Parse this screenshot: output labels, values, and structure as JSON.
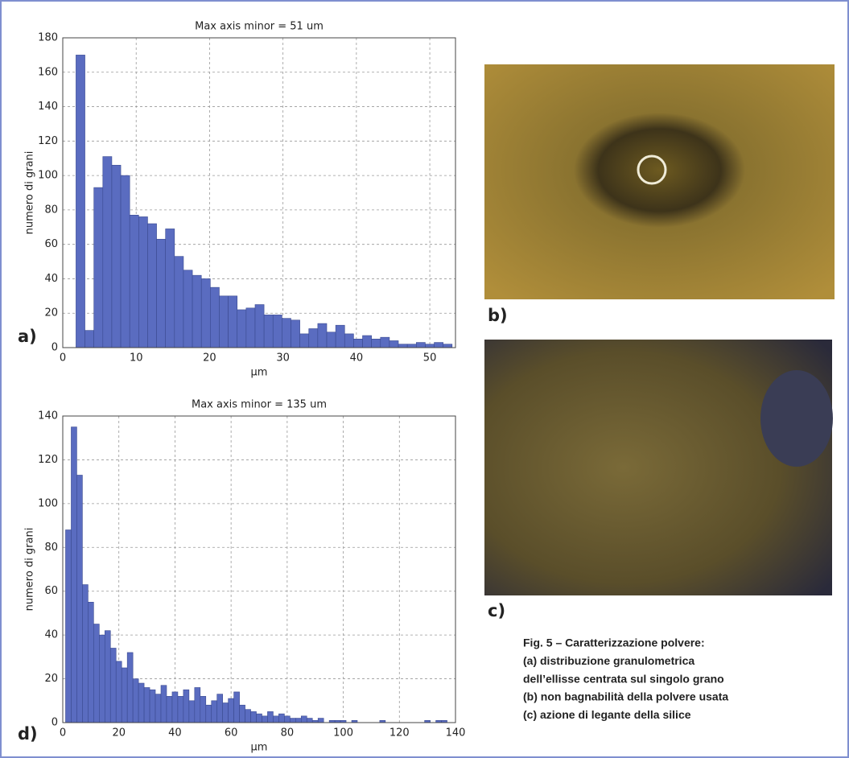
{
  "chart_data": [
    {
      "type": "histogram",
      "title": "Max axis minor = 51 um",
      "xlabel": "μm",
      "ylabel": "numero di grani",
      "color": "#5a6cc0",
      "grid": true,
      "bins": [
        1.8,
        3.02,
        4.24,
        5.46,
        6.68,
        7.9,
        9.12,
        10.34,
        11.56,
        12.78,
        14,
        15.22,
        16.44,
        17.66,
        18.88,
        20.1,
        21.32,
        22.54,
        23.76,
        24.98,
        26.2,
        27.42,
        28.64,
        29.86,
        31.08,
        32.3,
        33.52,
        34.74,
        35.96,
        37.18,
        38.4,
        39.62,
        40.84,
        42.06,
        43.28,
        44.5,
        45.72,
        46.94,
        48.16,
        49.38,
        50.6,
        51.82,
        53.04
      ],
      "counts": [
        170,
        10,
        93,
        111,
        106,
        100,
        77,
        76,
        72,
        63,
        69,
        53,
        45,
        42,
        40,
        35,
        30,
        30,
        22,
        23,
        25,
        19,
        19,
        17,
        16,
        8,
        11,
        14,
        9,
        13,
        8,
        5,
        7,
        5,
        6,
        4,
        2,
        2,
        3,
        2,
        3,
        2
      ],
      "xlim": [
        0,
        53.5
      ],
      "ylim": [
        0,
        180
      ],
      "xticks": [
        0,
        10,
        20,
        30,
        40,
        50
      ],
      "yticks": [
        0,
        20,
        40,
        60,
        80,
        100,
        120,
        140,
        160,
        180
      ]
    },
    {
      "type": "histogram",
      "title": "Max axis minor = 135 um",
      "xlabel": "μm",
      "ylabel": "numero di grani",
      "color": "#5a6cc0",
      "grid": true,
      "bins": [
        1,
        3,
        5,
        7,
        9,
        11,
        13,
        15,
        17,
        19,
        21,
        23,
        25,
        27,
        29,
        31,
        33,
        35,
        37,
        39,
        41,
        43,
        45,
        47,
        49,
        51,
        53,
        55,
        57,
        59,
        61,
        63,
        65,
        67,
        69,
        71,
        73,
        75,
        77,
        79,
        81,
        83,
        85,
        87,
        89,
        91,
        93,
        95,
        97,
        99,
        101,
        103,
        105,
        107,
        109,
        111,
        113,
        115,
        117,
        119,
        121,
        123,
        125,
        127,
        129,
        131,
        133,
        135,
        137
      ],
      "counts": [
        88,
        135,
        113,
        63,
        55,
        45,
        40,
        42,
        34,
        28,
        25,
        32,
        20,
        18,
        16,
        15,
        13,
        17,
        12,
        14,
        12,
        15,
        10,
        16,
        12,
        8,
        10,
        13,
        9,
        11,
        14,
        8,
        6,
        5,
        4,
        3,
        5,
        3,
        4,
        3,
        2,
        2,
        3,
        2,
        1,
        2,
        0,
        1,
        1,
        1,
        0,
        1,
        0,
        0,
        0,
        0,
        1,
        0,
        0,
        0,
        0,
        0,
        0,
        0,
        1,
        0,
        1,
        1
      ],
      "xlim": [
        0,
        140
      ],
      "ylim": [
        0,
        140
      ],
      "xticks": [
        0,
        20,
        40,
        60,
        80,
        100,
        120,
        140
      ],
      "yticks": [
        0,
        20,
        40,
        60,
        80,
        100,
        120,
        140
      ]
    }
  ],
  "figure": {
    "panel_labels": [
      "a)",
      "b)",
      "c)",
      "d)"
    ],
    "caption": [
      "Fig. 5 – Caratterizzazione polvere:",
      "(a) distribuzione granulometrica",
      "dell’ellisse centrata sul singolo grano",
      "(b) non bagnabilità della polvere usata",
      "(c) azione di legante della silice"
    ]
  }
}
